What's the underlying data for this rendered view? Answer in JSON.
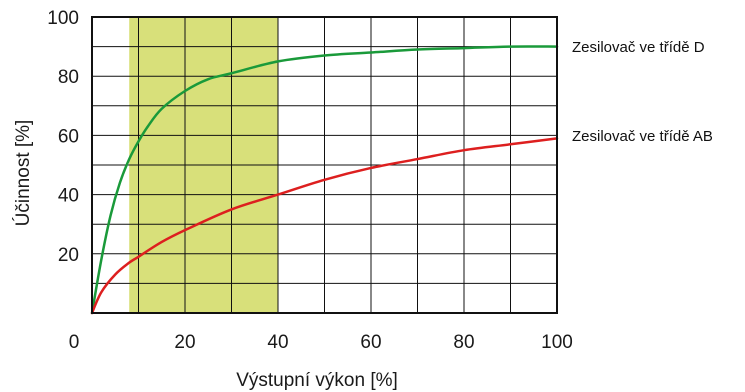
{
  "chart_data": {
    "type": "line",
    "xlabel": "Výstupní výkon [%]",
    "ylabel": "Účinnost [%]",
    "xlim": [
      0,
      100
    ],
    "ylim": [
      0,
      100
    ],
    "x_ticks": [
      "0",
      "20",
      "40",
      "60",
      "80",
      "100"
    ],
    "y_ticks": [
      "20",
      "40",
      "60",
      "80",
      "100"
    ],
    "grid": true,
    "highlight_band": {
      "x_from": 8,
      "x_to": 40,
      "color": "#d8e07a"
    },
    "series": [
      {
        "name": "Zesilovač ve třídě D",
        "color": "#1a9a3a",
        "x": [
          0,
          2,
          4,
          6,
          8,
          10,
          12,
          15,
          20,
          25,
          30,
          40,
          50,
          60,
          70,
          80,
          90,
          100
        ],
        "y": [
          0,
          18,
          33,
          44,
          52,
          58,
          63,
          69,
          75,
          79,
          81,
          85,
          87,
          88,
          89,
          89.5,
          90,
          90
        ]
      },
      {
        "name": "Zesilovač ve třídě AB",
        "color": "#dd1f1f",
        "x": [
          0,
          2,
          5,
          8,
          10,
          15,
          20,
          30,
          40,
          50,
          60,
          70,
          80,
          90,
          100
        ],
        "y": [
          0,
          7,
          13,
          17,
          19,
          24,
          28,
          35,
          40,
          45,
          49,
          52,
          55,
          57,
          59
        ]
      }
    ]
  }
}
